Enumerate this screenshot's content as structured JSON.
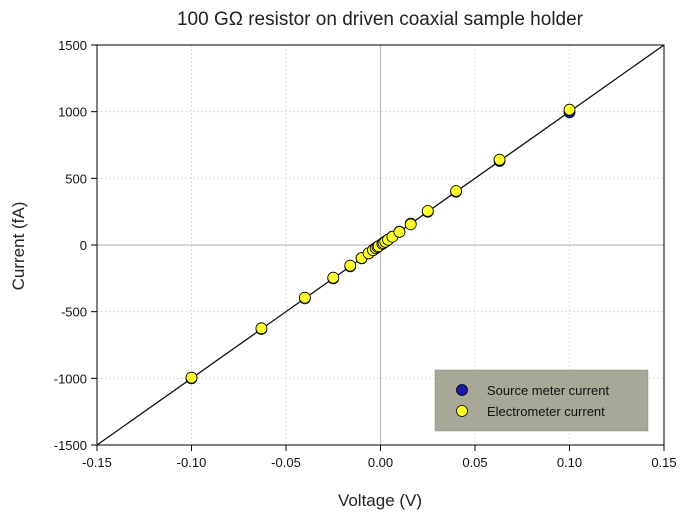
{
  "chart_data": {
    "type": "scatter",
    "title": "100 GΩ resistor on driven coaxial sample holder",
    "xlabel": "Voltage (V)",
    "ylabel": "Current (fA)",
    "xlim": [
      -0.15,
      0.15
    ],
    "ylim": [
      -1500,
      1500
    ],
    "xticks": [
      -0.15,
      -0.1,
      -0.05,
      0.0,
      0.05,
      0.1,
      0.15
    ],
    "xtick_labels": [
      "-0.15",
      "-0.10",
      "-0.05",
      "0.00",
      "0.05",
      "0.10",
      "0.15"
    ],
    "yticks": [
      -1500,
      -1000,
      -500,
      0,
      500,
      1000,
      1500
    ],
    "ytick_labels": [
      "-1500",
      "-1000",
      "-500",
      "0",
      "500",
      "1000",
      "1500"
    ],
    "grid": true,
    "legend_position": "bottom-right",
    "fit_line": {
      "x": [
        -0.15,
        0.15
      ],
      "y": [
        -1500,
        1500
      ]
    },
    "series": [
      {
        "name": "Source meter current",
        "color": "#1a1aa8",
        "x": [
          -0.1,
          -0.063,
          -0.04,
          -0.025,
          -0.016,
          -0.01,
          -0.0063,
          -0.004,
          -0.0025,
          -0.0016,
          -0.001,
          0.001,
          0.0016,
          0.0025,
          0.004,
          0.0063,
          0.01,
          0.016,
          0.025,
          0.04,
          0.063,
          0.1
        ],
        "y": [
          -1000,
          -630,
          -400,
          -250,
          -160,
          -100,
          -63,
          -40,
          -25,
          -16,
          -10,
          10,
          16,
          25,
          40,
          63,
          100,
          160,
          250,
          400,
          630,
          995
        ]
      },
      {
        "name": "Electrometer current",
        "color": "#ffff2a",
        "x": [
          -0.1,
          -0.063,
          -0.04,
          -0.025,
          -0.016,
          -0.01,
          -0.0063,
          -0.004,
          -0.0025,
          -0.0016,
          -0.001,
          0.001,
          0.0016,
          0.0025,
          0.004,
          0.0063,
          0.01,
          0.016,
          0.025,
          0.04,
          0.063,
          0.1
        ],
        "y": [
          -995,
          -625,
          -395,
          -245,
          -155,
          -98,
          -62,
          -39,
          -24,
          -15,
          -9,
          9,
          15,
          24,
          39,
          62,
          98,
          155,
          255,
          405,
          640,
          1015
        ]
      }
    ]
  }
}
